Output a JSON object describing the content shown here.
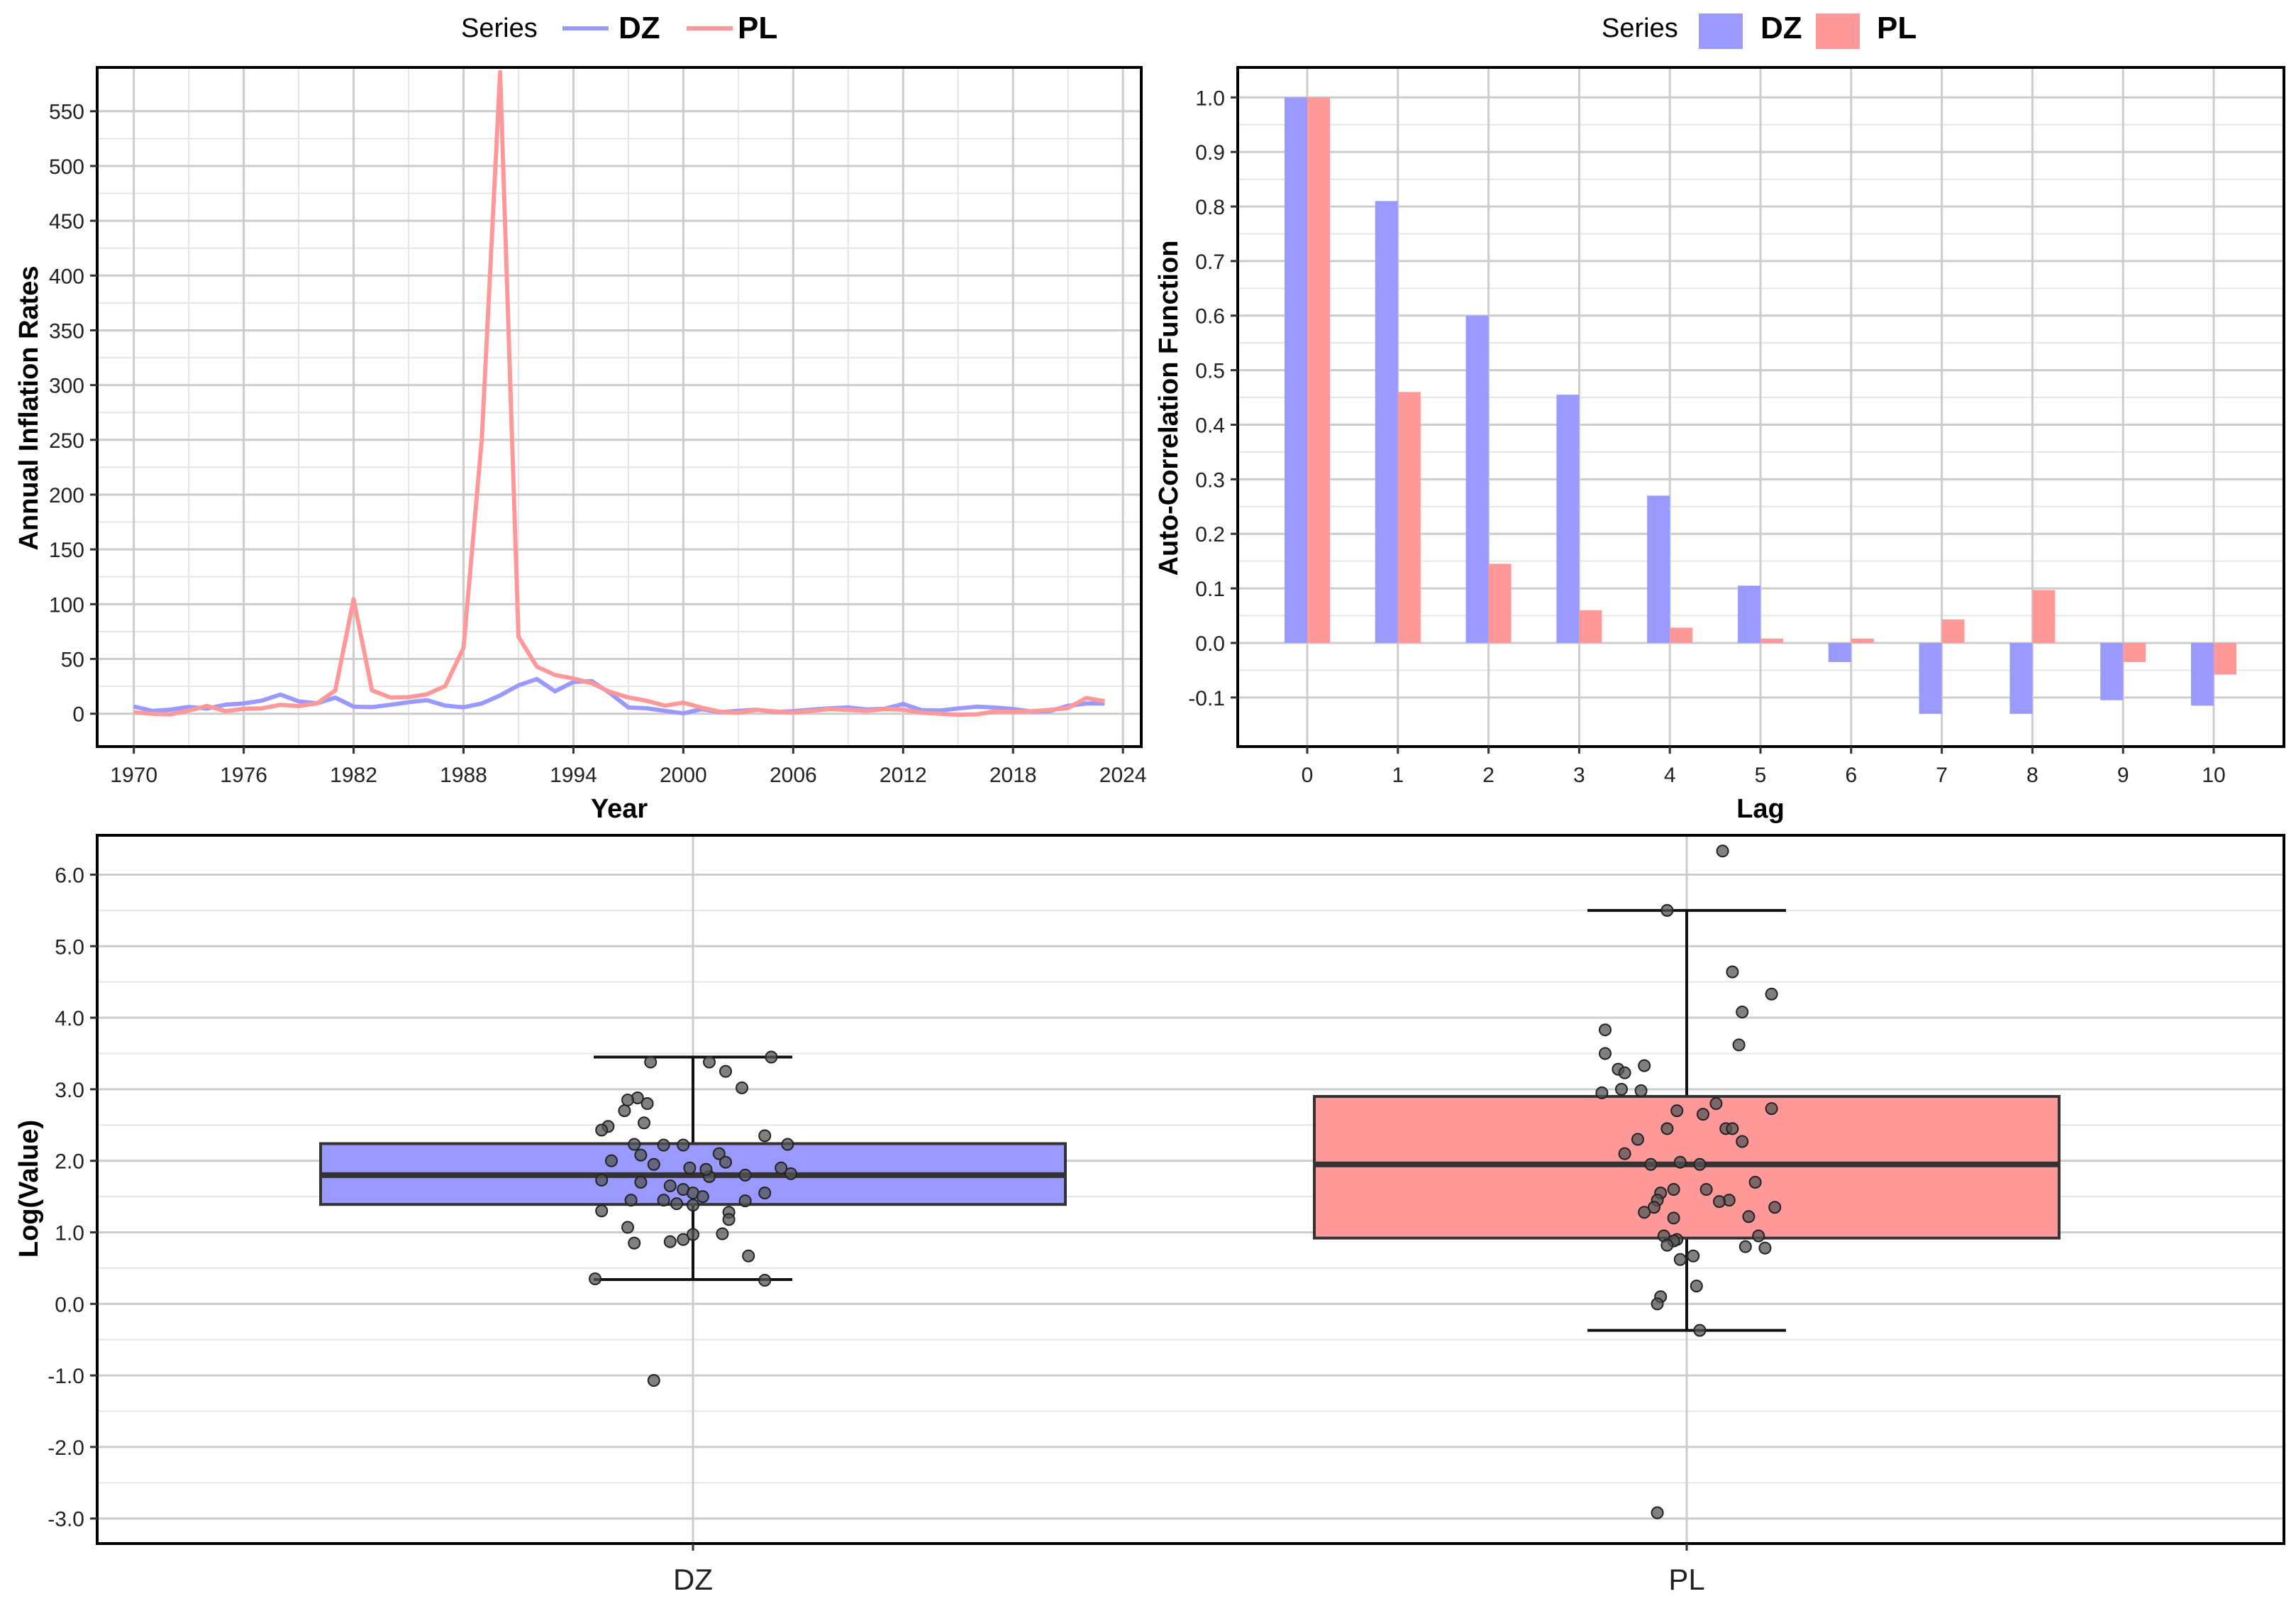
{
  "colors": {
    "dz": "#9999ff",
    "pl": "#ff9999",
    "grid_major": "#cccccc",
    "grid_minor": "#e6e6e6",
    "frame": "#000000",
    "point": "#555555"
  },
  "chart_data": [
    {
      "type": "line",
      "title": "",
      "legend_title": "Series",
      "legend_position": "top",
      "xlabel": "Year",
      "ylabel": "Annual Inflation Rates",
      "xlim": [
        1968,
        2025
      ],
      "ylim": [
        -30,
        590
      ],
      "x_ticks": [
        1970,
        1976,
        1982,
        1988,
        1994,
        2000,
        2006,
        2012,
        2018,
        2024
      ],
      "x_tick_labels": [
        "1970",
        "1976",
        "1982",
        "1988",
        "1994",
        "2000",
        "2006",
        "2012",
        "2018",
        "2024"
      ],
      "y_ticks": [
        0,
        50,
        100,
        150,
        200,
        250,
        300,
        350,
        400,
        450,
        500,
        550
      ],
      "y_tick_labels": [
        "0",
        "50",
        "100",
        "150",
        "200",
        "250",
        "300",
        "350",
        "400",
        "450",
        "500",
        "550"
      ],
      "x": [
        1970,
        1971,
        1972,
        1973,
        1974,
        1975,
        1976,
        1977,
        1978,
        1979,
        1980,
        1981,
        1982,
        1983,
        1984,
        1985,
        1986,
        1987,
        1988,
        1989,
        1990,
        1991,
        1992,
        1993,
        1994,
        1995,
        1996,
        1997,
        1998,
        1999,
        2000,
        2001,
        2002,
        2003,
        2004,
        2005,
        2006,
        2007,
        2008,
        2009,
        2010,
        2011,
        2012,
        2013,
        2014,
        2015,
        2016,
        2017,
        2018,
        2019,
        2020,
        2021,
        2022,
        2023
      ],
      "series": [
        {
          "name": "DZ",
          "values": [
            6.6,
            2.6,
            3.7,
            6.2,
            4.7,
            8.2,
            9.4,
            12,
            17.5,
            11.3,
            9.5,
            14.7,
            6.5,
            6,
            8.1,
            10.5,
            12.4,
            7.4,
            5.9,
            9.3,
            16.7,
            25.9,
            31.7,
            20.5,
            29,
            29.8,
            18.7,
            5.7,
            5,
            2.6,
            0.3,
            4.2,
            1.4,
            2.6,
            3.6,
            1.6,
            2.3,
            3.7,
            4.9,
            5.7,
            3.9,
            4.5,
            8.9,
            3.3,
            2.9,
            4.8,
            6.4,
            5.6,
            4.3,
            2,
            2.4,
            7.2,
            9.3,
            9.3
          ]
        },
        {
          "name": "PL",
          "values": [
            1.2,
            -0.1,
            -0.6,
            2.8,
            7.1,
            2.4,
            4.4,
            4.9,
            8.1,
            7,
            9.4,
            21.2,
            104.5,
            21.4,
            14.8,
            15.1,
            17.7,
            25.2,
            60.2,
            251.1,
            585.8,
            70.3,
            43,
            35.3,
            32.2,
            27.8,
            19.9,
            14.9,
            11.8,
            7.3,
            10.1,
            5.5,
            1.9,
            0.8,
            3.5,
            2.1,
            1,
            2.5,
            4.2,
            3.5,
            2.6,
            4.3,
            3.7,
            0.9,
            0,
            -0.9,
            -0.6,
            2,
            1.6,
            2.3,
            3.4,
            5.1,
            14.4,
            11.4
          ]
        }
      ]
    },
    {
      "type": "bar",
      "title": "",
      "legend_title": "Series",
      "legend_position": "top",
      "xlabel": "Lag",
      "ylabel": "Auto-Correlation Function",
      "ylim": [
        -0.19,
        1.055
      ],
      "y_ticks": [
        -0.1,
        0.0,
        0.1,
        0.2,
        0.3,
        0.4,
        0.5,
        0.6,
        0.7,
        0.8,
        0.9,
        1.0
      ],
      "y_tick_labels": [
        "-0.1",
        "0.0",
        "0.1",
        "0.2",
        "0.3",
        "0.4",
        "0.5",
        "0.6",
        "0.7",
        "0.8",
        "0.9",
        "1.0"
      ],
      "categories": [
        "0",
        "1",
        "2",
        "3",
        "4",
        "5",
        "6",
        "7",
        "8",
        "9",
        "10"
      ],
      "series": [
        {
          "name": "DZ",
          "values": [
            1.0,
            0.81,
            0.6,
            0.455,
            0.27,
            0.105,
            -0.035,
            -0.13,
            -0.13,
            -0.105,
            -0.115
          ]
        },
        {
          "name": "PL",
          "values": [
            1.0,
            0.46,
            0.145,
            0.06,
            0.028,
            0.008,
            0.008,
            0.043,
            0.097,
            -0.035,
            -0.058
          ]
        }
      ]
    },
    {
      "type": "box",
      "title": "",
      "xlabel": "",
      "ylabel": "Log(Value)",
      "ylim": [
        -3.35,
        6.55
      ],
      "y_ticks": [
        -3,
        -2,
        -1,
        0,
        1,
        2,
        3,
        4,
        5,
        6
      ],
      "y_tick_labels": [
        "-3.0",
        "-2.0",
        "-1.0",
        "0.0",
        "1.0",
        "2.0",
        "3.0",
        "4.0",
        "5.0",
        "6.0"
      ],
      "categories": [
        "DZ",
        "PL"
      ],
      "boxes": [
        {
          "name": "DZ",
          "whisker_low": 0.34,
          "q1": 1.39,
          "median": 1.8,
          "q3": 2.24,
          "whisker_high": 3.45,
          "points": [
            {
              "jitter": -0.3,
              "y": 0.35
            },
            {
              "jitter": 0.22,
              "y": 0.33
            },
            {
              "jitter": -0.12,
              "y": -1.07
            },
            {
              "jitter": 0.05,
              "y": 3.38
            },
            {
              "jitter": 0.24,
              "y": 3.45
            },
            {
              "jitter": -0.13,
              "y": 3.38
            },
            {
              "jitter": 0.1,
              "y": 3.25
            },
            {
              "jitter": 0.15,
              "y": 3.02
            },
            {
              "jitter": -0.17,
              "y": 2.88
            },
            {
              "jitter": -0.2,
              "y": 2.85
            },
            {
              "jitter": -0.14,
              "y": 2.8
            },
            {
              "jitter": -0.21,
              "y": 2.7
            },
            {
              "jitter": -0.15,
              "y": 2.53
            },
            {
              "jitter": -0.26,
              "y": 2.48
            },
            {
              "jitter": -0.28,
              "y": 2.43
            },
            {
              "jitter": 0.22,
              "y": 2.35
            },
            {
              "jitter": 0.29,
              "y": 2.23
            },
            {
              "jitter": -0.18,
              "y": 2.23
            },
            {
              "jitter": -0.09,
              "y": 2.22
            },
            {
              "jitter": -0.03,
              "y": 2.22
            },
            {
              "jitter": 0.08,
              "y": 2.1
            },
            {
              "jitter": -0.16,
              "y": 2.08
            },
            {
              "jitter": -0.25,
              "y": 2.0
            },
            {
              "jitter": 0.1,
              "y": 1.98
            },
            {
              "jitter": -0.01,
              "y": 1.9
            },
            {
              "jitter": 0.27,
              "y": 1.9
            },
            {
              "jitter": 0.3,
              "y": 1.82
            },
            {
              "jitter": 0.16,
              "y": 1.8
            },
            {
              "jitter": 0.05,
              "y": 1.78
            },
            {
              "jitter": -0.28,
              "y": 1.73
            },
            {
              "jitter": -0.16,
              "y": 1.7
            },
            {
              "jitter": -0.07,
              "y": 1.65
            },
            {
              "jitter": -0.03,
              "y": 1.6
            },
            {
              "jitter": 0.0,
              "y": 1.55
            },
            {
              "jitter": 0.22,
              "y": 1.55
            },
            {
              "jitter": 0.03,
              "y": 1.5
            },
            {
              "jitter": -0.09,
              "y": 1.45
            },
            {
              "jitter": -0.19,
              "y": 1.45
            },
            {
              "jitter": 0.16,
              "y": 1.44
            },
            {
              "jitter": -0.05,
              "y": 1.4
            },
            {
              "jitter": 0.0,
              "y": 1.38
            },
            {
              "jitter": -0.28,
              "y": 1.3
            },
            {
              "jitter": 0.11,
              "y": 1.28
            },
            {
              "jitter": 0.11,
              "y": 1.18
            },
            {
              "jitter": -0.2,
              "y": 1.07
            },
            {
              "jitter": 0.09,
              "y": 0.98
            },
            {
              "jitter": 0.0,
              "y": 0.97
            },
            {
              "jitter": -0.03,
              "y": 0.9
            },
            {
              "jitter": -0.18,
              "y": 0.85
            },
            {
              "jitter": 0.17,
              "y": 0.67
            },
            {
              "jitter": -0.07,
              "y": 0.87
            },
            {
              "jitter": 0.04,
              "y": 1.88
            },
            {
              "jitter": -0.12,
              "y": 1.95
            }
          ]
        },
        {
          "name": "PL",
          "whisker_low": -0.37,
          "q1": 0.92,
          "median": 1.95,
          "q3": 2.9,
          "whisker_high": 5.5,
          "points": [
            {
              "jitter": 0.11,
              "y": 6.33
            },
            {
              "jitter": -0.06,
              "y": 5.5
            },
            {
              "jitter": 0.14,
              "y": 4.64
            },
            {
              "jitter": 0.26,
              "y": 4.33
            },
            {
              "jitter": 0.17,
              "y": 4.08
            },
            {
              "jitter": -0.25,
              "y": 3.83
            },
            {
              "jitter": 0.16,
              "y": 3.62
            },
            {
              "jitter": -0.25,
              "y": 3.5
            },
            {
              "jitter": -0.13,
              "y": 3.33
            },
            {
              "jitter": -0.21,
              "y": 3.28
            },
            {
              "jitter": -0.19,
              "y": 3.23
            },
            {
              "jitter": -0.2,
              "y": 3.0
            },
            {
              "jitter": -0.14,
              "y": 2.98
            },
            {
              "jitter": -0.26,
              "y": 2.95
            },
            {
              "jitter": 0.09,
              "y": 2.8
            },
            {
              "jitter": 0.26,
              "y": 2.73
            },
            {
              "jitter": -0.03,
              "y": 2.7
            },
            {
              "jitter": 0.05,
              "y": 2.65
            },
            {
              "jitter": -0.06,
              "y": 2.45
            },
            {
              "jitter": 0.12,
              "y": 2.45
            },
            {
              "jitter": 0.14,
              "y": 2.45
            },
            {
              "jitter": -0.15,
              "y": 2.3
            },
            {
              "jitter": 0.17,
              "y": 2.27
            },
            {
              "jitter": -0.19,
              "y": 2.1
            },
            {
              "jitter": -0.02,
              "y": 1.98
            },
            {
              "jitter": 0.04,
              "y": 1.95
            },
            {
              "jitter": -0.11,
              "y": 1.95
            },
            {
              "jitter": 0.21,
              "y": 1.7
            },
            {
              "jitter": -0.04,
              "y": 1.6
            },
            {
              "jitter": 0.06,
              "y": 1.6
            },
            {
              "jitter": -0.08,
              "y": 1.55
            },
            {
              "jitter": 0.13,
              "y": 1.45
            },
            {
              "jitter": -0.09,
              "y": 1.45
            },
            {
              "jitter": 0.1,
              "y": 1.43
            },
            {
              "jitter": 0.27,
              "y": 1.35
            },
            {
              "jitter": -0.1,
              "y": 1.35
            },
            {
              "jitter": -0.13,
              "y": 1.28
            },
            {
              "jitter": 0.19,
              "y": 1.22
            },
            {
              "jitter": -0.04,
              "y": 1.2
            },
            {
              "jitter": 0.22,
              "y": 0.95
            },
            {
              "jitter": -0.07,
              "y": 0.95
            },
            {
              "jitter": -0.03,
              "y": 0.9
            },
            {
              "jitter": -0.04,
              "y": 0.88
            },
            {
              "jitter": -0.06,
              "y": 0.82
            },
            {
              "jitter": 0.18,
              "y": 0.8
            },
            {
              "jitter": 0.24,
              "y": 0.78
            },
            {
              "jitter": -0.02,
              "y": 0.62
            },
            {
              "jitter": 0.02,
              "y": 0.67
            },
            {
              "jitter": 0.03,
              "y": 0.25
            },
            {
              "jitter": -0.08,
              "y": 0.1
            },
            {
              "jitter": -0.09,
              "y": 0.0
            },
            {
              "jitter": 0.04,
              "y": -0.37
            },
            {
              "jitter": -0.09,
              "y": -2.92
            }
          ]
        }
      ]
    }
  ]
}
